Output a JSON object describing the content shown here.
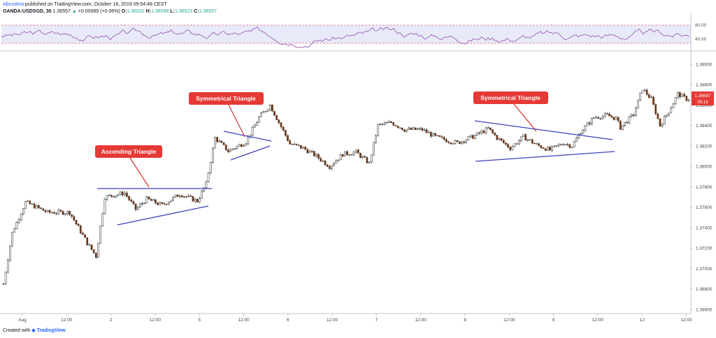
{
  "header": {
    "user": "Abozahra",
    "published_text": "published on TradingView.com, October 18, 2019 09:54:48 CEST",
    "symbol": "OANDA:USDSGD, 30",
    "last": "1.36557",
    "change_arrow": "▲",
    "change": "+0.00089 (+0.06%)",
    "o_label": "O:",
    "o": "1.36532",
    "h_label": "H:",
    "h": "1.36598",
    "l_label": "L:",
    "l": "1.36523",
    "c_label": "C:",
    "c": "1.36557"
  },
  "footer": {
    "prefix": "Created with",
    "brand": "TradingView"
  },
  "rsi": {
    "levels": [
      "80.00",
      "40.00"
    ]
  },
  "annotations": [
    {
      "label": "Ascending Triangle"
    },
    {
      "label": "Symmetrical Triangle"
    },
    {
      "label": "Symmetrical Triangle"
    }
  ],
  "price_tag": {
    "price": "1.38687",
    "countdown": "05:13"
  },
  "chart_data": {
    "type": "candlestick",
    "title": "",
    "y_ticks": [
      "1.39000",
      "1.38800",
      "1.38600",
      "1.38400",
      "1.38200",
      "1.38000",
      "1.37800",
      "1.37600",
      "1.37400",
      "1.37200",
      "1.37000",
      "1.36800",
      "1.36600"
    ],
    "x_ticks": [
      "Aug",
      "12:00",
      "2",
      "12:00",
      "5",
      "12:00",
      "6",
      "12:00",
      "7",
      "12:00",
      "8",
      "12:00",
      "9",
      "12:00",
      "12",
      "12:00"
    ],
    "ylim": [
      1.3656,
      1.3912
    ],
    "grid": false,
    "approx_close_path": [
      [
        0,
        1.3685
      ],
      [
        4,
        1.3735
      ],
      [
        10,
        1.3765
      ],
      [
        20,
        1.3755
      ],
      [
        30,
        1.3755
      ],
      [
        38,
        1.3725
      ],
      [
        42,
        1.3712
      ],
      [
        46,
        1.377
      ],
      [
        55,
        1.3774
      ],
      [
        60,
        1.3758
      ],
      [
        65,
        1.3768
      ],
      [
        72,
        1.3762
      ],
      [
        80,
        1.3773
      ],
      [
        88,
        1.3766
      ],
      [
        92,
        1.3783
      ],
      [
        96,
        1.3828
      ],
      [
        102,
        1.3815
      ],
      [
        110,
        1.3824
      ],
      [
        116,
        1.3848
      ],
      [
        121,
        1.386
      ],
      [
        125,
        1.3843
      ],
      [
        130,
        1.3822
      ],
      [
        136,
        1.3818
      ],
      [
        142,
        1.381
      ],
      [
        148,
        1.38
      ],
      [
        154,
        1.3812
      ],
      [
        160,
        1.3814
      ],
      [
        166,
        1.3803
      ],
      [
        170,
        1.384
      ],
      [
        176,
        1.3843
      ],
      [
        182,
        1.3836
      ],
      [
        190,
        1.3836
      ],
      [
        196,
        1.3829
      ],
      [
        202,
        1.3825
      ],
      [
        206,
        1.3823
      ],
      [
        214,
        1.383
      ],
      [
        220,
        1.3837
      ],
      [
        224,
        1.3828
      ],
      [
        230,
        1.3818
      ],
      [
        236,
        1.3829
      ],
      [
        242,
        1.3821
      ],
      [
        248,
        1.3816
      ],
      [
        254,
        1.3823
      ],
      [
        258,
        1.382
      ],
      [
        262,
        1.3834
      ],
      [
        268,
        1.3848
      ],
      [
        274,
        1.385
      ],
      [
        278,
        1.3847
      ],
      [
        280,
        1.3838
      ],
      [
        286,
        1.3851
      ],
      [
        290,
        1.3876
      ],
      [
        294,
        1.3866
      ],
      [
        298,
        1.384
      ],
      [
        302,
        1.3854
      ],
      [
        306,
        1.3871
      ],
      [
        310,
        1.3866
      ]
    ]
  }
}
